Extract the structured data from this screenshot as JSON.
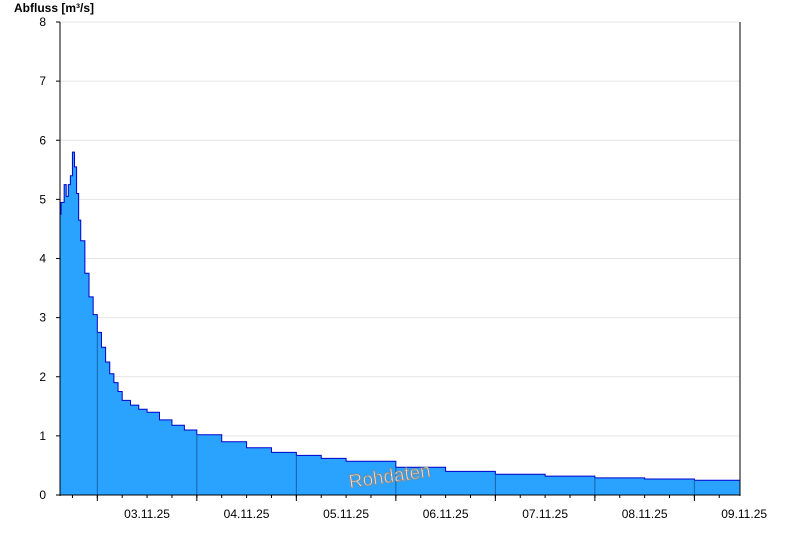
{
  "chart_data": {
    "type": "area",
    "ylabel": "Abfluss [m³/s]",
    "ylim": [
      0,
      8
    ],
    "y_ticks": [
      "0",
      "1",
      "2",
      "3",
      "4",
      "5",
      "6",
      "7",
      "8"
    ],
    "xlim": [
      "2025-11-02T15:00",
      "2025-11-09T11:00"
    ],
    "x_ticks": [
      "03.11.25",
      "04.11.25",
      "05.11.25",
      "06.11.25",
      "07.11.25",
      "08.11.25",
      "09.11.25"
    ],
    "grid": true,
    "fill_color": "#29a3ff",
    "line_color": "#0000cc",
    "watermark": "Rohdaten",
    "series": [
      {
        "x": [
          "2025-11-02T15:00",
          "2025-11-02T15:15",
          "2025-11-02T16:00",
          "2025-11-02T16:30",
          "2025-11-02T17:00",
          "2025-11-02T17:30",
          "2025-11-02T18:00",
          "2025-11-02T18:30",
          "2025-11-02T19:00",
          "2025-11-02T19:30",
          "2025-11-02T20:00",
          "2025-11-02T21:00",
          "2025-11-02T22:00",
          "2025-11-02T23:00",
          "2025-11-03T00:00",
          "2025-11-03T01:00",
          "2025-11-03T02:00",
          "2025-11-03T03:00",
          "2025-11-03T04:00",
          "2025-11-03T05:00",
          "2025-11-03T06:00",
          "2025-11-03T08:00",
          "2025-11-03T10:00",
          "2025-11-03T12:00",
          "2025-11-03T15:00",
          "2025-11-03T18:00",
          "2025-11-03T21:00",
          "2025-11-04T00:00",
          "2025-11-04T06:00",
          "2025-11-04T12:00",
          "2025-11-04T18:00",
          "2025-11-05T00:00",
          "2025-11-05T06:00",
          "2025-11-05T12:00",
          "2025-11-06T00:00",
          "2025-11-06T12:00",
          "2025-11-07T00:00",
          "2025-11-07T12:00",
          "2025-11-08T00:00",
          "2025-11-08T12:00",
          "2025-11-09T00:00",
          "2025-11-09T11:00"
        ],
        "values": [
          4.75,
          4.95,
          5.25,
          5.05,
          5.25,
          5.4,
          5.8,
          5.55,
          5.1,
          4.65,
          4.3,
          3.75,
          3.35,
          3.05,
          2.75,
          2.5,
          2.25,
          2.05,
          1.9,
          1.75,
          1.6,
          1.52,
          1.45,
          1.4,
          1.27,
          1.18,
          1.1,
          1.02,
          0.9,
          0.8,
          0.72,
          0.67,
          0.62,
          0.57,
          0.47,
          0.4,
          0.35,
          0.32,
          0.29,
          0.27,
          0.25,
          0.23
        ]
      }
    ]
  }
}
